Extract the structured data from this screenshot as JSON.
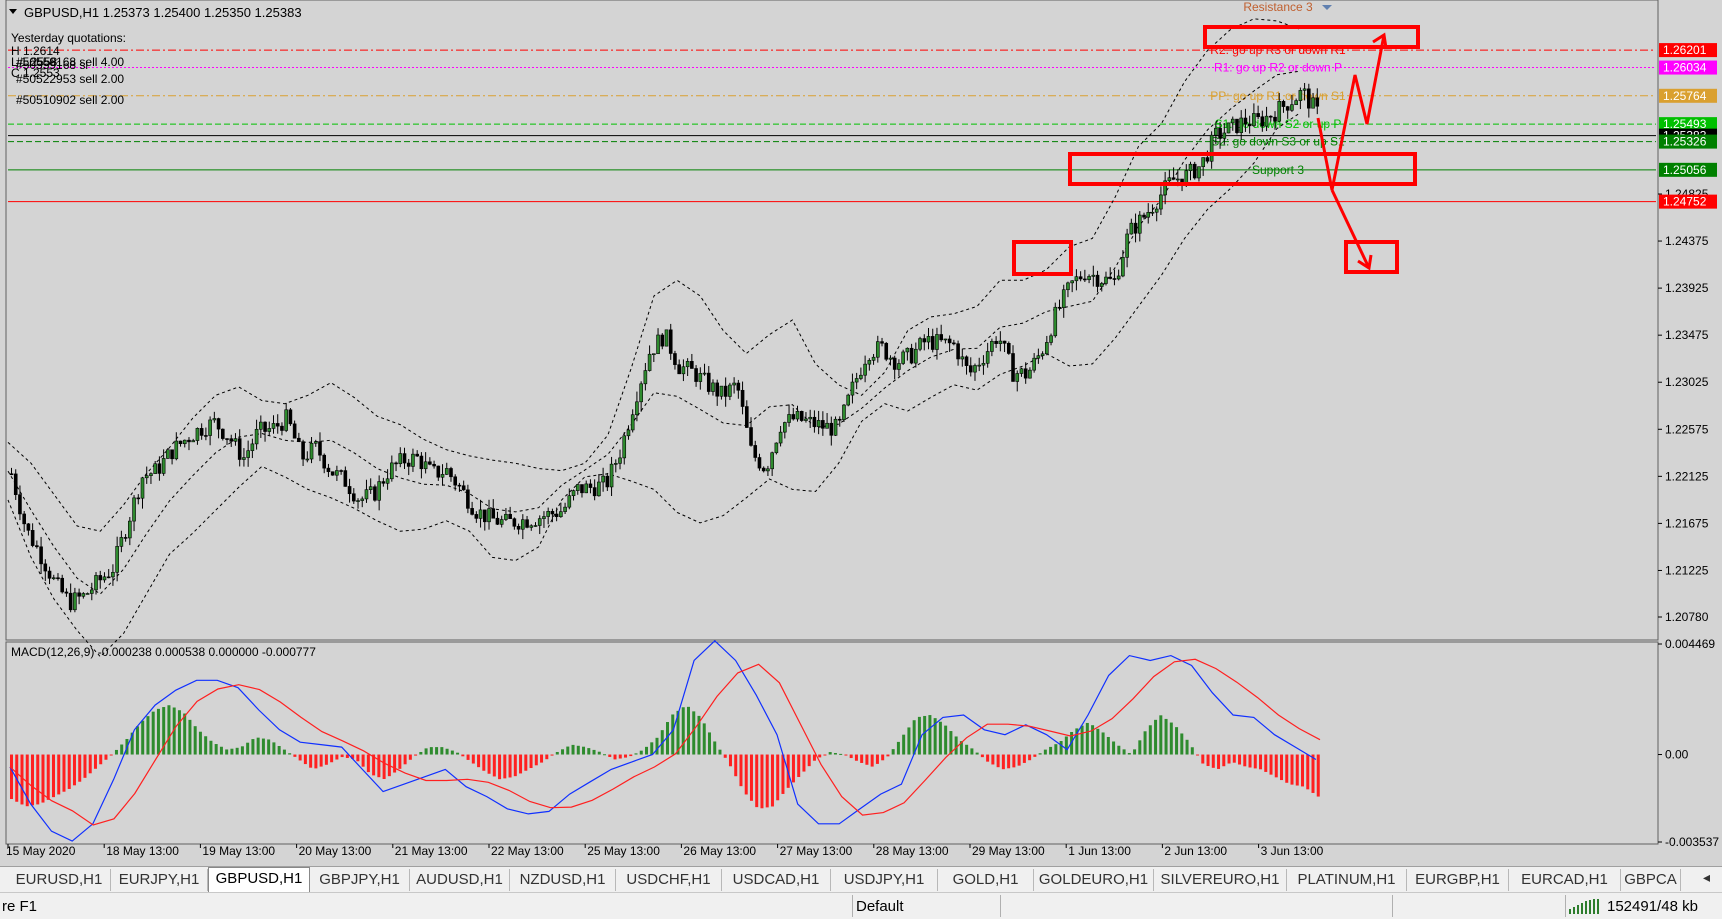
{
  "window": {
    "header": "GBPUSD,H1  1.25373 1.25400 1.25350 1.25383",
    "yesterday": [
      "Yesterday quotations:",
      "H 1.2614",
      "L 1.2558",
      "C 1.2553"
    ],
    "orders": [
      "#50559168 sell 4.00",
      "#50559168 sl",
      "#50522953 sell 2.00",
      "#50510902 sell 2.00"
    ]
  },
  "levels": [
    {
      "label": "Resistance 3",
      "value": 1.2632,
      "color": "#c06030",
      "badge": ""
    },
    {
      "label": "R2: go up R3 or down R1",
      "value": 1.26201,
      "color": "#ff0000",
      "badge": "1.26201"
    },
    {
      "label": "R1: go up R2 or down P",
      "value": 1.26034,
      "color": "#ff00ff",
      "badge": "1.26034"
    },
    {
      "label": "PP: go up R1 or down S1",
      "value": 1.25764,
      "color": "#daa030",
      "badge": "1.25764"
    },
    {
      "label": "S1: go down S2 or up P",
      "value": 1.25493,
      "color": "#00c000",
      "badge": "1.25493"
    },
    {
      "label": "",
      "value": 1.25383,
      "color": "#000000",
      "badge": "1.25383"
    },
    {
      "label": "S2: go down S3 or up S1",
      "value": 1.25326,
      "color": "#008000",
      "badge": "1.25326"
    },
    {
      "label": "Support 3",
      "value": 1.25056,
      "color": "#008000",
      "badge": "1.25056"
    },
    {
      "label": "",
      "value": 1.24752,
      "color": "#ff0000",
      "badge": "1.24752"
    }
  ],
  "chart_data": [
    {
      "type": "candlestick",
      "title": "GBPUSD,H1",
      "ylim": [
        1.2056,
        1.2668
      ],
      "price_ticks": [
        "1.24825",
        "1.24375",
        "1.23925",
        "1.23475",
        "1.23025",
        "1.22575",
        "1.22125",
        "1.21675",
        "1.21225",
        "1.20780"
      ],
      "x_labels": [
        "15 May 2020",
        "18 May 13:00",
        "19 May 13:00",
        "20 May 13:00",
        "21 May 13:00",
        "22 May 13:00",
        "25 May 13:00",
        "26 May 13:00",
        "27 May 13:00",
        "28 May 13:00",
        "29 May 13:00",
        "1 Jun 13:00",
        "2 Jun 13:00",
        "3 Jun 13:00"
      ],
      "close_path": [
        1.2215,
        1.2162,
        1.2138,
        1.211,
        1.2092,
        1.2098,
        1.2112,
        1.2125,
        1.2168,
        1.2212,
        1.2218,
        1.2236,
        1.2248,
        1.2258,
        1.2264,
        1.225,
        1.223,
        1.2255,
        1.2258,
        1.2268,
        1.223,
        1.224,
        1.2218,
        1.2208,
        1.219,
        1.2196,
        1.2218,
        1.2228,
        1.223,
        1.2215,
        1.2218,
        1.22,
        1.218,
        1.2172,
        1.2168,
        1.217,
        1.2172,
        1.2176,
        1.218,
        1.22,
        1.2202,
        1.2205,
        1.2238,
        1.2288,
        1.2332,
        1.2348,
        1.2318,
        1.2312,
        1.23,
        1.229,
        1.23,
        1.2235,
        1.222,
        1.2262,
        1.2268,
        1.2264,
        1.226,
        1.2258,
        1.2298,
        1.2332,
        1.2335,
        1.2322,
        1.2328,
        1.2342,
        1.234,
        1.2338,
        1.231,
        1.2328,
        1.2348,
        1.2312,
        1.231,
        1.2332,
        1.2368,
        1.2395,
        1.2408,
        1.2402,
        1.2398,
        1.2445,
        1.246,
        1.2478,
        1.2496,
        1.25,
        1.251,
        1.2538,
        1.2545,
        1.2552,
        1.2552,
        1.256,
        1.257,
        1.258,
        1.256
      ],
      "bollinger_upper": [
        1.2245,
        1.2225,
        1.2195,
        1.2165,
        1.216,
        1.2185,
        1.2215,
        1.224,
        1.2268,
        1.229,
        1.2298,
        1.2285,
        1.2282,
        1.229,
        1.2302,
        1.2288,
        1.227,
        1.2262,
        1.2248,
        1.2238,
        1.2232,
        1.2228,
        1.2225,
        1.222,
        1.2218,
        1.2225,
        1.2252,
        1.2315,
        1.2385,
        1.24,
        1.2385,
        1.2352,
        1.233,
        1.2348,
        1.2362,
        1.232,
        1.23,
        1.229,
        1.2312,
        1.2352,
        1.2365,
        1.2368,
        1.2375,
        1.24,
        1.24,
        1.241,
        1.2432,
        1.244,
        1.248,
        1.2528,
        1.255,
        1.259,
        1.262,
        1.264,
        1.265,
        1.2648,
        1.264
      ],
      "bollinger_lower": [
        1.219,
        1.2135,
        1.2095,
        1.2065,
        1.204,
        1.2062,
        1.21,
        1.2138,
        1.2158,
        1.218,
        1.2202,
        1.2222,
        1.2212,
        1.22,
        1.2192,
        1.2182,
        1.217,
        1.216,
        1.2162,
        1.217,
        1.216,
        1.2135,
        1.2132,
        1.2145,
        1.219,
        1.2212,
        1.2215,
        1.2208,
        1.22,
        1.2178,
        1.2168,
        1.2175,
        1.2192,
        1.221,
        1.22,
        1.2198,
        1.2225,
        1.2265,
        1.2282,
        1.2275,
        1.2288,
        1.23,
        1.2295,
        1.231,
        1.2318,
        1.233,
        1.2318,
        1.232,
        1.2345,
        1.2375,
        1.2405,
        1.244,
        1.2468,
        1.2488,
        1.2512,
        1.2545,
        1.256
      ]
    },
    {
      "type": "bar",
      "title": "MACD(12,26,9) -0.000238 0.000538 0.000000 -0.000777",
      "ylim": [
        -0.003537,
        0.004469
      ],
      "y_ticks": [
        "0.004469",
        "0.00",
        "-0.003537"
      ],
      "histogram": [
        -0.0018,
        -0.0021,
        -0.002,
        -0.0017,
        -0.0014,
        -0.001,
        -0.0005,
        0.0,
        0.0006,
        0.0013,
        0.0018,
        0.002,
        0.0017,
        0.001,
        0.0005,
        0.0002,
        0.0003,
        0.0007,
        0.0006,
        0.0002,
        -0.0002,
        -0.0006,
        -0.0004,
        -0.0001,
        -0.0002,
        -0.0008,
        -0.001,
        -0.0006,
        -0.0001,
        0.0003,
        0.0003,
        0.0001,
        -0.0003,
        -0.0007,
        -0.001,
        -0.0009,
        -0.0006,
        -0.0003,
        0.0001,
        0.0004,
        0.0003,
        0.0001,
        -0.0002,
        -0.0001,
        0.0002,
        0.0007,
        0.0016,
        0.002,
        0.0015,
        0.0005,
        -0.0004,
        -0.0015,
        -0.0022,
        -0.0021,
        -0.0014,
        -0.0008,
        -0.0002,
        0.0001,
        0.0,
        -0.0003,
        -0.0005,
        -0.0001,
        0.0007,
        0.0015,
        0.0016,
        0.0012,
        0.0006,
        0.0002,
        -0.0003,
        -0.0006,
        -0.0005,
        -0.0002,
        0.0002,
        0.0005,
        0.001,
        0.0013,
        0.0009,
        0.0004,
        0.0,
        0.001,
        0.0016,
        0.0012,
        0.0005,
        -0.0004,
        -0.0006,
        -0.0003,
        -0.0005,
        -0.0006,
        -0.0009,
        -0.0012,
        -0.0013,
        -0.0017
      ],
      "macd_line": [
        -0.0005,
        -0.002,
        -0.0031,
        -0.0035,
        -0.0028,
        -0.001,
        0.001,
        0.002,
        0.0026,
        0.003,
        0.003,
        0.0027,
        0.0018,
        0.001,
        0.0005,
        0.0004,
        0.0003,
        -0.0006,
        -0.0015,
        -0.0012,
        -0.0009,
        -0.0006,
        -0.0013,
        -0.0017,
        -0.0022,
        -0.0024,
        -0.0023,
        -0.0016,
        -0.0011,
        -0.0006,
        -0.0003,
        0.0,
        0.001,
        0.0038,
        0.0046,
        0.0038,
        0.0024,
        0.0008,
        -0.002,
        -0.0028,
        -0.0028,
        -0.0022,
        -0.0016,
        -0.0012,
        0.0008,
        0.0015,
        0.0016,
        0.001,
        0.0008,
        0.0012,
        0.0008,
        0.0002,
        0.0016,
        0.0032,
        0.004,
        0.0038,
        0.004,
        0.0036,
        0.0025,
        0.0016,
        0.0015,
        0.0008,
        0.0003,
        -0.0002
      ]
    }
  ],
  "tabs": [
    "EURUSD,H1",
    "EURJPY,H1",
    "GBPUSD,H1",
    "GBPJPY,H1",
    "AUDUSD,H1",
    "NZDUSD,H1",
    "USDCHF,H1",
    "USDCAD,H1",
    "USDJPY,H1",
    "GOLD,H1",
    "GOLDEURO,H1",
    "SILVEREURO,H1",
    "PLATINUM,H1",
    "EURGBP,H1",
    "EURCAD,H1",
    "GBPCA"
  ],
  "status": {
    "help": "re F1",
    "profile": "Default",
    "traffic": "152491/48 kb"
  }
}
